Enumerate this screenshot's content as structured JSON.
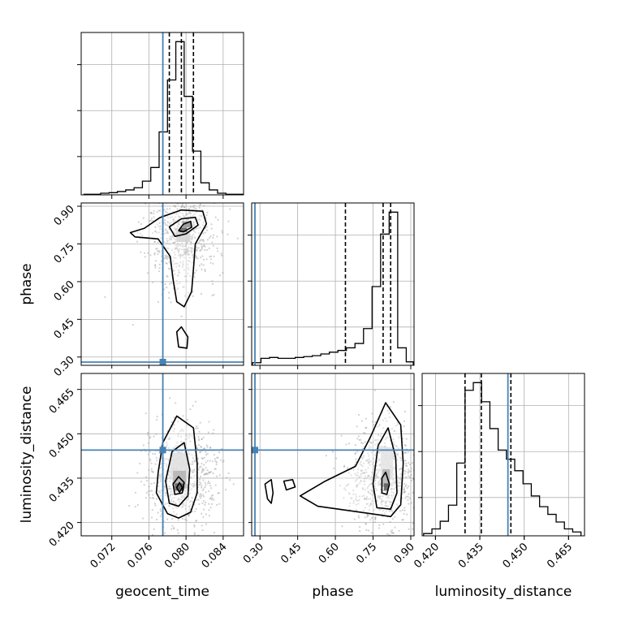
{
  "chart_data": {
    "type": "corner",
    "parameters": [
      "geocent_time",
      "phase",
      "luminosity_distance"
    ],
    "truths": {
      "geocent_time": 0.0775,
      "phase": 0.28,
      "luminosity_distance": 0.4445
    },
    "colors": {
      "truth": "#4682b4",
      "contour": "#000000",
      "grid": "#b0b0b0",
      "scatter": "#9a9a9a"
    },
    "grid": true,
    "ranges": {
      "geocent_time": [
        0.0687,
        0.0862
      ],
      "phase": [
        0.267,
        0.913
      ],
      "luminosity_distance": [
        0.4155,
        0.4704
      ]
    },
    "ticks": {
      "geocent_time": [
        0.072,
        0.076,
        0.08,
        0.084
      ],
      "phase": [
        0.3,
        0.45,
        0.6,
        0.75,
        0.9
      ],
      "luminosity_distance": [
        0.42,
        0.435,
        0.45,
        0.465
      ]
    },
    "tick_labels": {
      "geocent_time": [
        "0.072",
        "0.076",
        "0.080",
        "0.084"
      ],
      "phase": [
        "0.30",
        "0.45",
        "0.60",
        "0.75",
        "0.90"
      ],
      "luminosity_distance": [
        "0.420",
        "0.435",
        "0.450",
        "0.465"
      ]
    },
    "quantiles": {
      "geocent_time": [
        0.0782,
        0.0795,
        0.0808
      ],
      "phase": [
        0.64,
        0.79,
        0.82
      ],
      "luminosity_distance": [
        0.43,
        0.4355,
        0.4455
      ]
    },
    "histograms": {
      "geocent_time": {
        "edges": [
          0.069,
          0.0699,
          0.0708,
          0.0717,
          0.0726,
          0.0735,
          0.0744,
          0.0753,
          0.0762,
          0.0771,
          0.078,
          0.0789,
          0.0798,
          0.0807,
          0.0816,
          0.0825,
          0.0834,
          0.0843,
          0.0852,
          0.0861
        ],
        "counts": [
          1,
          1,
          3,
          4,
          6,
          9,
          13,
          25,
          50,
          115,
          210,
          280,
          180,
          80,
          22,
          9,
          3,
          1,
          1
        ]
      },
      "phase": {
        "edges": [
          0.27,
          0.304,
          0.338,
          0.372,
          0.406,
          0.44,
          0.474,
          0.508,
          0.542,
          0.576,
          0.61,
          0.644,
          0.678,
          0.712,
          0.746,
          0.78,
          0.814,
          0.848,
          0.882,
          0.91
        ],
        "counts": [
          3,
          8,
          9,
          8,
          8,
          9,
          10,
          11,
          13,
          15,
          17,
          20,
          25,
          42,
          90,
          150,
          175,
          20,
          4
        ]
      },
      "luminosity_distance": {
        "edges": [
          0.416,
          0.4188,
          0.4216,
          0.4244,
          0.4272,
          0.43,
          0.4328,
          0.4356,
          0.4384,
          0.4412,
          0.444,
          0.4468,
          0.4496,
          0.4524,
          0.4552,
          0.458,
          0.4608,
          0.4636,
          0.4664,
          0.4692
        ],
        "counts": [
          3,
          9,
          19,
          40,
          95,
          190,
          200,
          175,
          140,
          112,
          100,
          85,
          68,
          52,
          38,
          28,
          18,
          9,
          5
        ]
      }
    },
    "contours_2d": {
      "phase_vs_geocent_time": [
        [
          [
            0.0755,
            0.812
          ],
          [
            0.0772,
            0.855
          ],
          [
            0.0795,
            0.885
          ],
          [
            0.0818,
            0.88
          ],
          [
            0.0822,
            0.83
          ],
          [
            0.081,
            0.75
          ],
          [
            0.0808,
            0.65
          ],
          [
            0.0806,
            0.56
          ],
          [
            0.0798,
            0.5
          ],
          [
            0.079,
            0.52
          ],
          [
            0.0786,
            0.61
          ],
          [
            0.0783,
            0.7
          ],
          [
            0.077,
            0.77
          ],
          [
            0.0745,
            0.778
          ],
          [
            0.074,
            0.795
          ]
        ],
        [
          [
            0.0782,
            0.818
          ],
          [
            0.0795,
            0.85
          ],
          [
            0.081,
            0.856
          ],
          [
            0.0813,
            0.825
          ],
          [
            0.08,
            0.79
          ],
          [
            0.0788,
            0.78
          ]
        ],
        [
          [
            0.0792,
            0.803
          ],
          [
            0.0797,
            0.828
          ],
          [
            0.0805,
            0.84
          ],
          [
            0.0806,
            0.816
          ],
          [
            0.0797,
            0.798
          ]
        ],
        [
          [
            0.0792,
            0.34
          ],
          [
            0.079,
            0.4
          ],
          [
            0.0795,
            0.42
          ],
          [
            0.0802,
            0.38
          ],
          [
            0.0801,
            0.335
          ]
        ]
      ],
      "luminosity_distance_vs_geocent_time": [
        [
          [
            0.078,
            0.423
          ],
          [
            0.0768,
            0.43
          ],
          [
            0.077,
            0.437
          ],
          [
            0.0775,
            0.447
          ],
          [
            0.079,
            0.456
          ],
          [
            0.0808,
            0.452
          ],
          [
            0.0812,
            0.44
          ],
          [
            0.0812,
            0.43
          ],
          [
            0.0805,
            0.4235
          ],
          [
            0.0792,
            0.4215
          ]
        ],
        [
          [
            0.0782,
            0.4265
          ],
          [
            0.0778,
            0.434
          ],
          [
            0.0785,
            0.444
          ],
          [
            0.0798,
            0.447
          ],
          [
            0.0804,
            0.438
          ],
          [
            0.0802,
            0.429
          ],
          [
            0.0792,
            0.4255
          ]
        ],
        [
          [
            0.0788,
            0.4295
          ],
          [
            0.0786,
            0.433
          ],
          [
            0.0792,
            0.4355
          ],
          [
            0.0798,
            0.4335
          ],
          [
            0.0796,
            0.43
          ]
        ],
        [
          [
            0.079,
            0.4318
          ],
          [
            0.0793,
            0.4335
          ],
          [
            0.0796,
            0.4318
          ],
          [
            0.0793,
            0.4302
          ]
        ]
      ],
      "luminosity_distance_vs_phase": [
        [
          [
            0.74,
            0.423
          ],
          [
            0.53,
            0.4255
          ],
          [
            0.46,
            0.429
          ],
          [
            0.56,
            0.434
          ],
          [
            0.68,
            0.439
          ],
          [
            0.74,
            0.449
          ],
          [
            0.8,
            0.4605
          ],
          [
            0.86,
            0.453
          ],
          [
            0.87,
            0.44
          ],
          [
            0.86,
            0.426
          ],
          [
            0.82,
            0.422
          ]
        ],
        [
          [
            0.765,
            0.425
          ],
          [
            0.75,
            0.433
          ],
          [
            0.77,
            0.446
          ],
          [
            0.81,
            0.452
          ],
          [
            0.84,
            0.442
          ],
          [
            0.845,
            0.43
          ],
          [
            0.82,
            0.4245
          ]
        ],
        [
          [
            0.785,
            0.43
          ],
          [
            0.785,
            0.435
          ],
          [
            0.8,
            0.437
          ],
          [
            0.815,
            0.433
          ],
          [
            0.805,
            0.4295
          ]
        ],
        [
          [
            0.405,
            0.431
          ],
          [
            0.395,
            0.434
          ],
          [
            0.43,
            0.4345
          ],
          [
            0.44,
            0.432
          ]
        ],
        [
          [
            0.33,
            0.428
          ],
          [
            0.32,
            0.433
          ],
          [
            0.345,
            0.4345
          ],
          [
            0.352,
            0.43
          ],
          [
            0.345,
            0.4265
          ]
        ]
      ]
    },
    "density_blobs": {
      "phase_vs_geocent_time": [
        {
          "x": 0.0797,
          "y": 0.806,
          "w": 0.0008,
          "h": 0.018,
          "shade": "#000000"
        },
        {
          "x": 0.0801,
          "y": 0.828,
          "w": 0.0009,
          "h": 0.024,
          "shade": "#555555"
        },
        {
          "x": 0.0797,
          "y": 0.78,
          "w": 0.0015,
          "h": 0.045,
          "shade": "#bdbdbd"
        }
      ],
      "luminosity_distance_vs_geocent_time": [
        {
          "x": 0.0793,
          "y": 0.432,
          "w": 0.001,
          "h": 0.0025,
          "shade": "#000000"
        },
        {
          "x": 0.0793,
          "y": 0.4345,
          "w": 0.0014,
          "h": 0.006,
          "shade": "#888888"
        },
        {
          "x": 0.0793,
          "y": 0.439,
          "w": 0.002,
          "h": 0.009,
          "shade": "#cfcfcf"
        }
      ],
      "luminosity_distance_vs_phase": [
        {
          "x": 0.802,
          "y": 0.432,
          "w": 0.018,
          "h": 0.0025,
          "shade": "#000000"
        },
        {
          "x": 0.802,
          "y": 0.435,
          "w": 0.03,
          "h": 0.006,
          "shade": "#888888"
        },
        {
          "x": 0.805,
          "y": 0.44,
          "w": 0.05,
          "h": 0.011,
          "shade": "#d6d6d6"
        }
      ]
    }
  }
}
